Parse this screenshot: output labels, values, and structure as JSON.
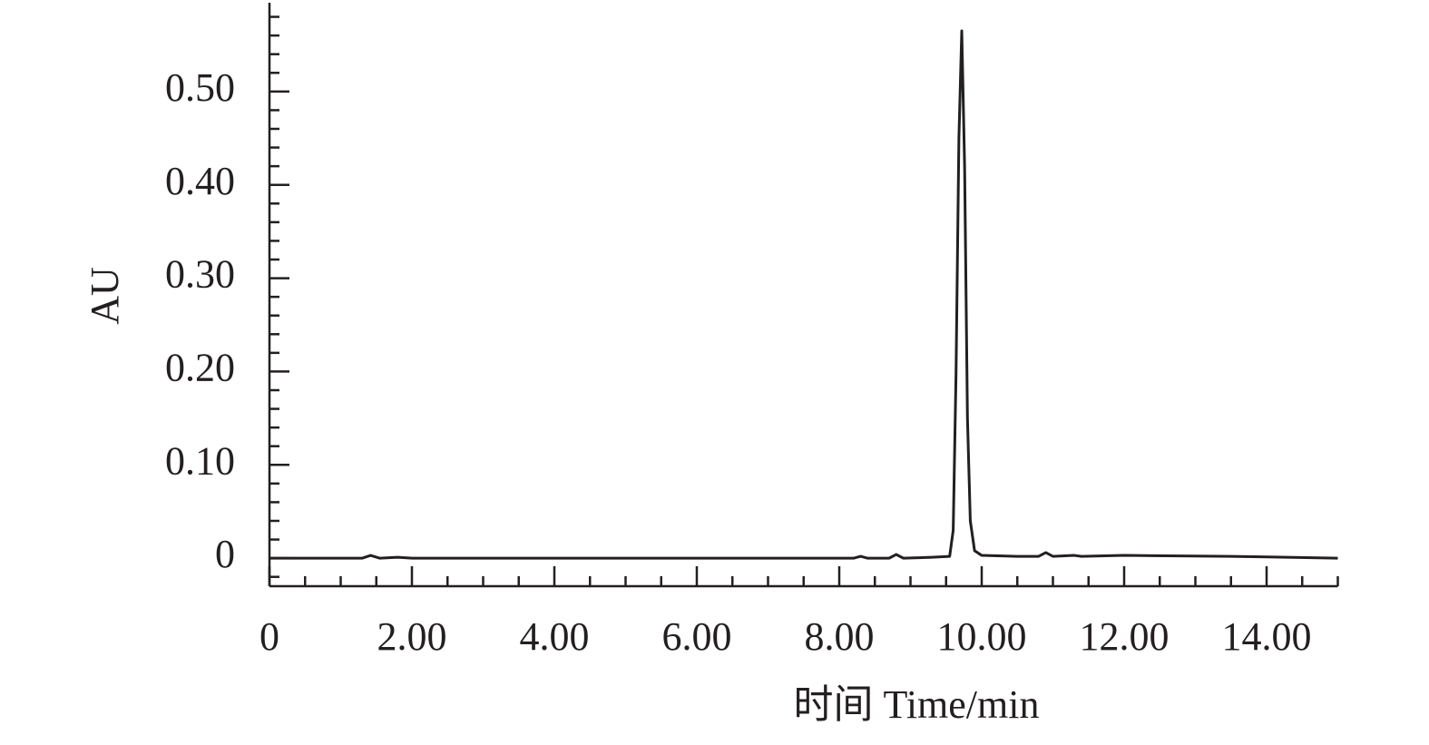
{
  "chart_data": {
    "type": "line",
    "xlabel": "时间 Time/min",
    "ylabel": "AU",
    "xlim": [
      0,
      15
    ],
    "ylim": [
      -0.03,
      0.6
    ],
    "xticks": [
      0,
      {
        "value": 2,
        "label": "2.00"
      },
      {
        "value": 4,
        "label": "4.00"
      },
      {
        "value": 6,
        "label": "6.00"
      },
      {
        "value": 8,
        "label": "8.00"
      },
      {
        "value": 10,
        "label": "10.00"
      },
      {
        "value": 12,
        "label": "12.00"
      },
      {
        "value": 14,
        "label": "14.00"
      }
    ],
    "xminorticks": [
      0.5,
      1,
      1.5,
      2.5,
      3,
      3.5,
      4.5,
      5,
      5.5,
      6.5,
      7,
      7.5,
      8.5,
      9,
      9.5,
      10.5,
      11,
      11.5,
      12.5,
      13,
      13.5,
      14.5,
      15
    ],
    "yticks": [
      0,
      {
        "value": 0.1,
        "label": "0.10"
      },
      {
        "value": 0.2,
        "label": "0.20"
      },
      {
        "value": 0.3,
        "label": "0.30"
      },
      {
        "value": 0.4,
        "label": "0.40"
      },
      {
        "value": 0.5,
        "label": "0.50"
      }
    ],
    "yminorticks": [
      -0.02,
      0.02,
      0.04,
      0.06,
      0.08,
      0.12,
      0.14,
      0.16,
      0.18,
      0.22,
      0.24,
      0.26,
      0.28,
      0.32,
      0.34,
      0.36,
      0.38,
      0.42,
      0.44,
      0.46,
      0.48,
      0.52,
      0.54,
      0.56,
      0.58
    ],
    "series": [
      {
        "color": "#231f20",
        "x": [
          0,
          1.3,
          1.42,
          1.55,
          1.8,
          2.0,
          8.2,
          8.3,
          8.4,
          8.7,
          8.8,
          8.9,
          9.3,
          9.55,
          9.6,
          9.64,
          9.68,
          9.72,
          9.76,
          9.8,
          9.84,
          9.9,
          10.0,
          10.5,
          10.8,
          10.9,
          11.0,
          11.3,
          11.4,
          12.0,
          13.5,
          15
        ],
        "values": [
          0,
          0,
          0.003,
          0,
          0.001,
          0,
          0,
          0.002,
          0,
          0,
          0.004,
          0,
          0.001,
          0.002,
          0.03,
          0.2,
          0.45,
          0.565,
          0.42,
          0.15,
          0.04,
          0.008,
          0.003,
          0.002,
          0.002,
          0.006,
          0.002,
          0.003,
          0.002,
          0.003,
          0.002,
          0
        ]
      }
    ]
  }
}
